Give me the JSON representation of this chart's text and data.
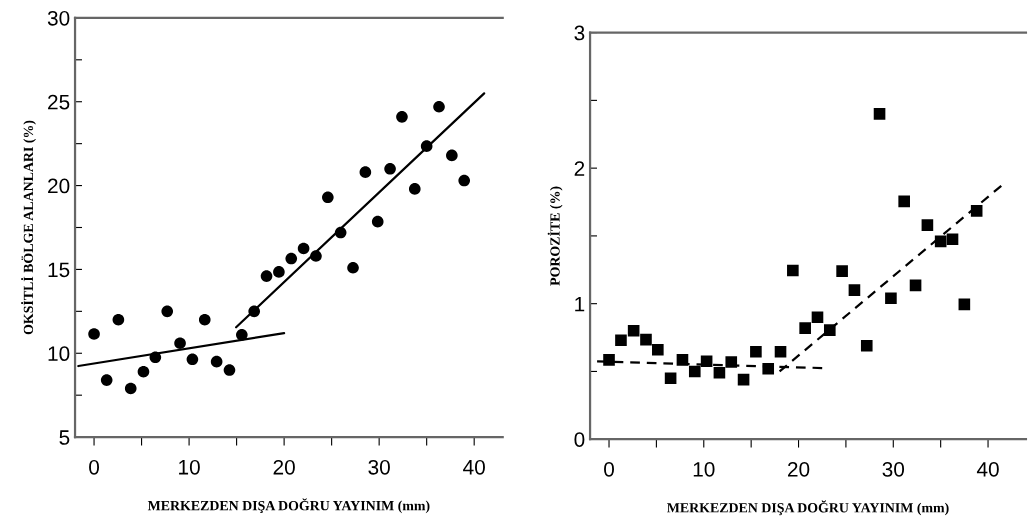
{
  "chart_data": [
    {
      "type": "scatter",
      "xlabel": "MERKEZDEN DIŞA DOĞRU YAYINIM (mm)",
      "ylabel": "OKSİTLİ BÖLGE ALANLARI (%)",
      "xlim": [
        -2,
        43
      ],
      "ylim": [
        5,
        30
      ],
      "xticks": [
        0,
        {
          "value": 5,
          "label": null
        },
        10,
        {
          "value": 15,
          "label": null
        },
        20,
        {
          "value": 25,
          "label": null
        },
        30,
        {
          "value": 35,
          "label": null
        },
        40
      ],
      "yticks": [
        5,
        {
          "value": 7.5,
          "label": null
        },
        10,
        {
          "value": 12.5,
          "label": null
        },
        15,
        {
          "value": 17.5,
          "label": null
        },
        20,
        {
          "value": 22.5,
          "label": null
        },
        25,
        {
          "value": 27.5,
          "label": null
        },
        30
      ],
      "grid": false,
      "legend": false,
      "series": [
        {
          "marker": "circle",
          "color": "#000000",
          "x": [
            0,
            1.33,
            2.56,
            3.86,
            5.2,
            6.45,
            7.7,
            9.05,
            10.35,
            11.65,
            12.9,
            14.25,
            15.55,
            16.85,
            18.15,
            19.45,
            20.75,
            22.05,
            23.35,
            24.6,
            25.95,
            27.25,
            28.55,
            29.85,
            31.15,
            32.4,
            33.75,
            35.0,
            36.3,
            37.65,
            38.95
          ],
          "values": [
            11.15,
            8.4,
            12.0,
            7.9,
            8.9,
            9.76,
            12.5,
            10.6,
            9.64,
            12.0,
            9.5,
            9.0,
            11.1,
            12.5,
            14.6,
            14.85,
            15.65,
            16.25,
            15.8,
            19.3,
            17.2,
            15.1,
            20.8,
            17.85,
            21.0,
            24.1,
            19.8,
            22.35,
            24.7,
            21.8,
            20.3
          ]
        },
        {
          "type": "line",
          "line_style": "solid",
          "color": "#000000",
          "x": [
            -1.65,
            20.0
          ],
          "values": [
            9.24,
            11.2
          ]
        },
        {
          "type": "line",
          "line_style": "solid",
          "color": "#000000",
          "x": [
            14.95,
            41.05
          ],
          "values": [
            11.55,
            25.5
          ]
        }
      ]
    },
    {
      "type": "scatter",
      "xlabel": "MERKEZDEN DIŞA DOĞRU YAYINIM (mm)",
      "ylabel": "POROZİTE (%)",
      "xlim": [
        -2,
        44
      ],
      "ylim": [
        0,
        3
      ],
      "xticks": [
        0,
        {
          "value": 5,
          "label": null
        },
        10,
        {
          "value": 15,
          "label": null
        },
        20,
        {
          "value": 25,
          "label": null
        },
        30,
        {
          "value": 35,
          "label": null
        },
        40
      ],
      "yticks": [
        0,
        {
          "value": 0.5,
          "label": null
        },
        1,
        {
          "value": 1.5,
          "label": null
        },
        2,
        {
          "value": 2.5,
          "label": null
        },
        3
      ],
      "grid": false,
      "legend": false,
      "series": [
        {
          "marker": "square",
          "color": "#000000",
          "x": [
            0,
            1.26,
            2.6,
            3.9,
            5.15,
            6.5,
            7.75,
            9.05,
            10.3,
            11.65,
            12.9,
            14.2,
            15.5,
            16.8,
            18.1,
            19.4,
            20.7,
            22.0,
            23.3,
            24.6,
            25.9,
            27.2,
            28.55,
            29.75,
            31.15,
            32.35,
            33.6,
            35.0,
            36.25,
            37.5,
            38.8
          ],
          "values": [
            0.585,
            0.73,
            0.8,
            0.735,
            0.66,
            0.45,
            0.585,
            0.5,
            0.575,
            0.49,
            0.57,
            0.44,
            0.645,
            0.52,
            0.645,
            1.245,
            0.82,
            0.9,
            0.805,
            1.24,
            1.1,
            0.69,
            2.4,
            1.04,
            1.755,
            1.135,
            1.58,
            1.46,
            1.475,
            0.995,
            1.685
          ]
        },
        {
          "type": "line",
          "line_style": "dashed",
          "color": "#000000",
          "x": [
            -1.26,
            22.5
          ],
          "values": [
            0.575,
            0.525
          ]
        },
        {
          "type": "line",
          "line_style": "dashed",
          "color": "#000000",
          "x": [
            18.0,
            41.4
          ],
          "values": [
            0.5,
            1.87
          ]
        }
      ]
    }
  ]
}
